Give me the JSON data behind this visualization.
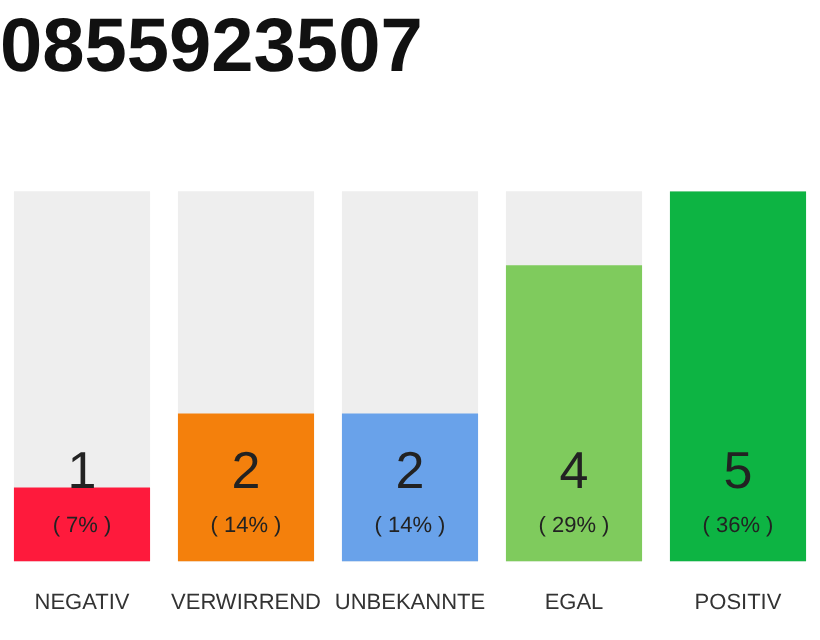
{
  "chart_data": {
    "type": "bar",
    "title": "0855923507",
    "categories": [
      "NEGATIV",
      "VERWIRREND",
      "UNBEKANNTE",
      "EGAL",
      "POSITIV"
    ],
    "values": [
      1,
      2,
      2,
      4,
      5
    ],
    "colors": [
      "#fe1a3c",
      "#f4800c",
      "#69a2ea",
      "#7fcb5d",
      "#0db443"
    ],
    "ylim": [
      0,
      5
    ],
    "data_labels": true,
    "annotations": [
      "( 7% )",
      "( 14% )",
      "( 14% )",
      "( 29% )",
      "( 36% )"
    ],
    "grid": false,
    "legend": false
  }
}
